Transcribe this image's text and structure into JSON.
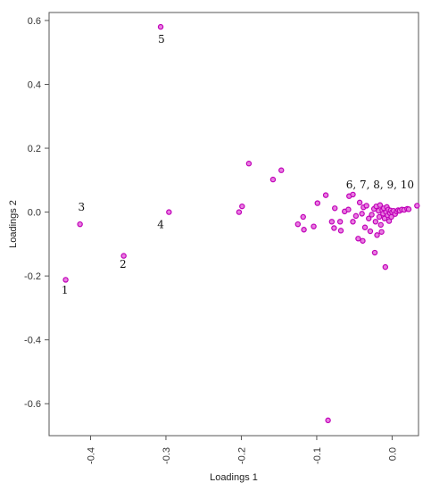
{
  "chart_data": {
    "type": "scatter",
    "title": "",
    "xlabel": "Loadings 1",
    "ylabel": "Loadings 2",
    "xlim": [
      -0.455,
      0.035
    ],
    "ylim": [
      -0.7,
      0.625
    ],
    "x_ticks": [
      -0.4,
      -0.3,
      -0.2,
      -0.1,
      0.0
    ],
    "x_tick_labels": [
      "-0.4",
      "-0.3",
      "-0.2",
      "-0.1",
      "0.0"
    ],
    "y_ticks": [
      0.6,
      0.4,
      0.2,
      0.0,
      -0.2,
      -0.4,
      -0.6
    ],
    "y_tick_labels": [
      "0.6",
      "0.4",
      "0.2",
      "0.0",
      "-0.2",
      "-0.4",
      "-0.6"
    ],
    "grid": false,
    "point_color": "#e87de0",
    "point_edge_color": "#c000b8",
    "annotations": [
      {
        "text": "1",
        "x": -0.434,
        "y": -0.255
      },
      {
        "text": "2",
        "x": -0.357,
        "y": -0.175
      },
      {
        "text": "3",
        "x": -0.412,
        "y": 0.005
      },
      {
        "text": "4",
        "x": -0.307,
        "y": -0.05
      },
      {
        "text": "5",
        "x": -0.306,
        "y": 0.53
      },
      {
        "text": "6, 7, 8, 9, 10",
        "x": -0.016,
        "y": 0.075
      }
    ],
    "series": [
      {
        "points": [
          {
            "x": -0.433,
            "y": -0.212
          },
          {
            "x": -0.414,
            "y": -0.038
          },
          {
            "x": -0.356,
            "y": -0.137
          },
          {
            "x": -0.307,
            "y": 0.58
          },
          {
            "x": -0.296,
            "y": 0.0
          },
          {
            "x": -0.203,
            "y": 0.0
          },
          {
            "x": -0.199,
            "y": 0.018
          },
          {
            "x": -0.19,
            "y": 0.152
          },
          {
            "x": -0.158,
            "y": 0.102
          },
          {
            "x": -0.147,
            "y": 0.131
          },
          {
            "x": -0.125,
            "y": -0.038
          },
          {
            "x": -0.118,
            "y": -0.015
          },
          {
            "x": -0.117,
            "y": -0.055
          },
          {
            "x": -0.104,
            "y": -0.045
          },
          {
            "x": -0.099,
            "y": 0.028
          },
          {
            "x": -0.088,
            "y": 0.053
          },
          {
            "x": -0.085,
            "y": -0.652
          },
          {
            "x": -0.08,
            "y": -0.03
          },
          {
            "x": -0.077,
            "y": -0.05
          },
          {
            "x": -0.076,
            "y": 0.012
          },
          {
            "x": -0.069,
            "y": -0.03
          },
          {
            "x": -0.068,
            "y": -0.058
          },
          {
            "x": -0.063,
            "y": 0.002
          },
          {
            "x": -0.058,
            "y": 0.008
          },
          {
            "x": -0.057,
            "y": 0.05
          },
          {
            "x": -0.052,
            "y": 0.055
          },
          {
            "x": -0.052,
            "y": -0.03
          },
          {
            "x": -0.048,
            "y": -0.012
          },
          {
            "x": -0.045,
            "y": -0.083
          },
          {
            "x": -0.043,
            "y": 0.03
          },
          {
            "x": -0.04,
            "y": -0.005
          },
          {
            "x": -0.039,
            "y": -0.09
          },
          {
            "x": -0.038,
            "y": 0.015
          },
          {
            "x": -0.036,
            "y": -0.048
          },
          {
            "x": -0.034,
            "y": 0.02
          },
          {
            "x": -0.031,
            "y": -0.02
          },
          {
            "x": -0.029,
            "y": -0.06
          },
          {
            "x": -0.027,
            "y": -0.008
          },
          {
            "x": -0.024,
            "y": 0.01
          },
          {
            "x": -0.023,
            "y": -0.127
          },
          {
            "x": -0.022,
            "y": -0.03
          },
          {
            "x": -0.021,
            "y": 0.018
          },
          {
            "x": -0.02,
            "y": -0.072
          },
          {
            "x": -0.018,
            "y": 0.004
          },
          {
            "x": -0.017,
            "y": -0.015
          },
          {
            "x": -0.016,
            "y": 0.022
          },
          {
            "x": -0.015,
            "y": -0.04
          },
          {
            "x": -0.014,
            "y": -0.062
          },
          {
            "x": -0.013,
            "y": 0.006
          },
          {
            "x": -0.012,
            "y": -0.005
          },
          {
            "x": -0.011,
            "y": 0.012
          },
          {
            "x": -0.01,
            "y": -0.02
          },
          {
            "x": -0.009,
            "y": -0.172
          },
          {
            "x": -0.008,
            "y": 0.0
          },
          {
            "x": -0.007,
            "y": 0.016
          },
          {
            "x": -0.006,
            "y": -0.01
          },
          {
            "x": -0.005,
            "y": 0.008
          },
          {
            "x": -0.004,
            "y": -0.028
          },
          {
            "x": -0.003,
            "y": -0.003
          },
          {
            "x": -0.002,
            "y": 0.005
          },
          {
            "x": -0.001,
            "y": -0.015
          },
          {
            "x": 0.0,
            "y": 0.0
          },
          {
            "x": 0.002,
            "y": 0.004
          },
          {
            "x": 0.004,
            "y": -0.006
          },
          {
            "x": 0.006,
            "y": 0.002
          },
          {
            "x": 0.008,
            "y": 0.006
          },
          {
            "x": 0.01,
            "y": 0.004
          },
          {
            "x": 0.013,
            "y": 0.008
          },
          {
            "x": 0.016,
            "y": 0.007
          },
          {
            "x": 0.02,
            "y": 0.01
          },
          {
            "x": 0.022,
            "y": 0.009
          },
          {
            "x": 0.033,
            "y": 0.02
          }
        ]
      }
    ]
  }
}
